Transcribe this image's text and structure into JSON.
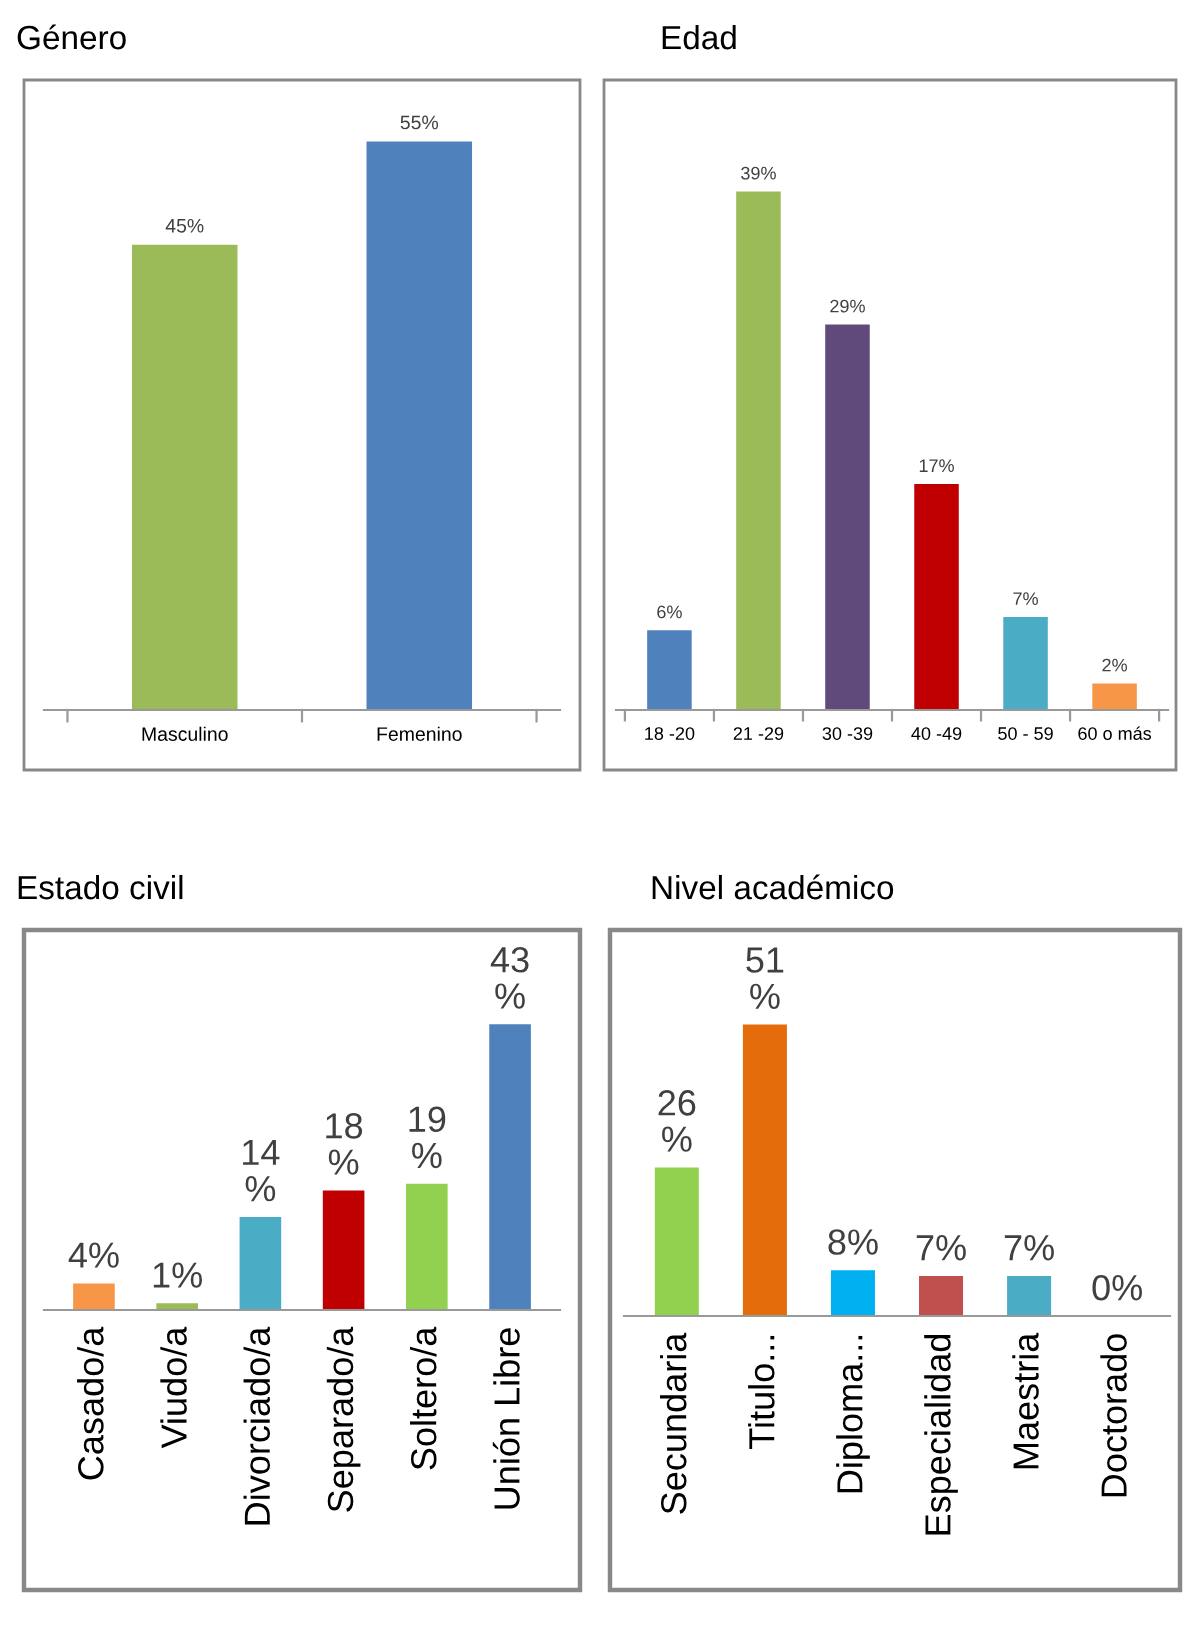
{
  "chart_data": [
    {
      "type": "bar",
      "title": "Género",
      "categories": [
        "Masculino",
        "Femenino"
      ],
      "values": [
        45,
        55
      ],
      "colors": [
        "#9bbb59",
        "#4f81bd"
      ],
      "value_labels": [
        "45%",
        "55%"
      ]
    },
    {
      "type": "bar",
      "title": "Edad",
      "categories": [
        "18 -20",
        "21 -29",
        "30 -39",
        "40 -49",
        "50 - 59",
        "60 o más"
      ],
      "values": [
        6,
        39,
        29,
        17,
        7,
        2
      ],
      "colors": [
        "#4f81bd",
        "#9bbb59",
        "#604a7b",
        "#c00000",
        "#4bacc6",
        "#f79646"
      ],
      "value_labels": [
        "6%",
        "39%",
        "29%",
        "17%",
        "7%",
        "2%"
      ]
    },
    {
      "type": "bar",
      "title": "Estado civil",
      "categories": [
        "Casado/a",
        "Viudo/a",
        "Divorciado/a",
        "Separado/a",
        "Soltero/a",
        "Unión Libre"
      ],
      "values": [
        4,
        1,
        14,
        18,
        19,
        43
      ],
      "colors": [
        "#f79646",
        "#9bbb59",
        "#4bacc6",
        "#c00000",
        "#92d050",
        "#4f81bd"
      ],
      "value_labels": [
        "4%",
        "1%",
        "14\n%",
        "18\n%",
        "19\n%",
        "43\n%"
      ]
    },
    {
      "type": "bar",
      "title": "Nivel académico",
      "categories": [
        "Secundaria",
        "Titulo...",
        "Diploma...",
        "Especialidad",
        "Maestria",
        "Doctorado"
      ],
      "values": [
        26,
        51,
        8,
        7,
        7,
        0
      ],
      "colors": [
        "#92d050",
        "#e46c0a",
        "#00b0f0",
        "#c0504d",
        "#4bacc6",
        "#4bacc6"
      ],
      "value_labels": [
        "26\n%",
        "51\n%",
        "8%",
        "7%",
        "7%",
        "0%"
      ]
    }
  ]
}
